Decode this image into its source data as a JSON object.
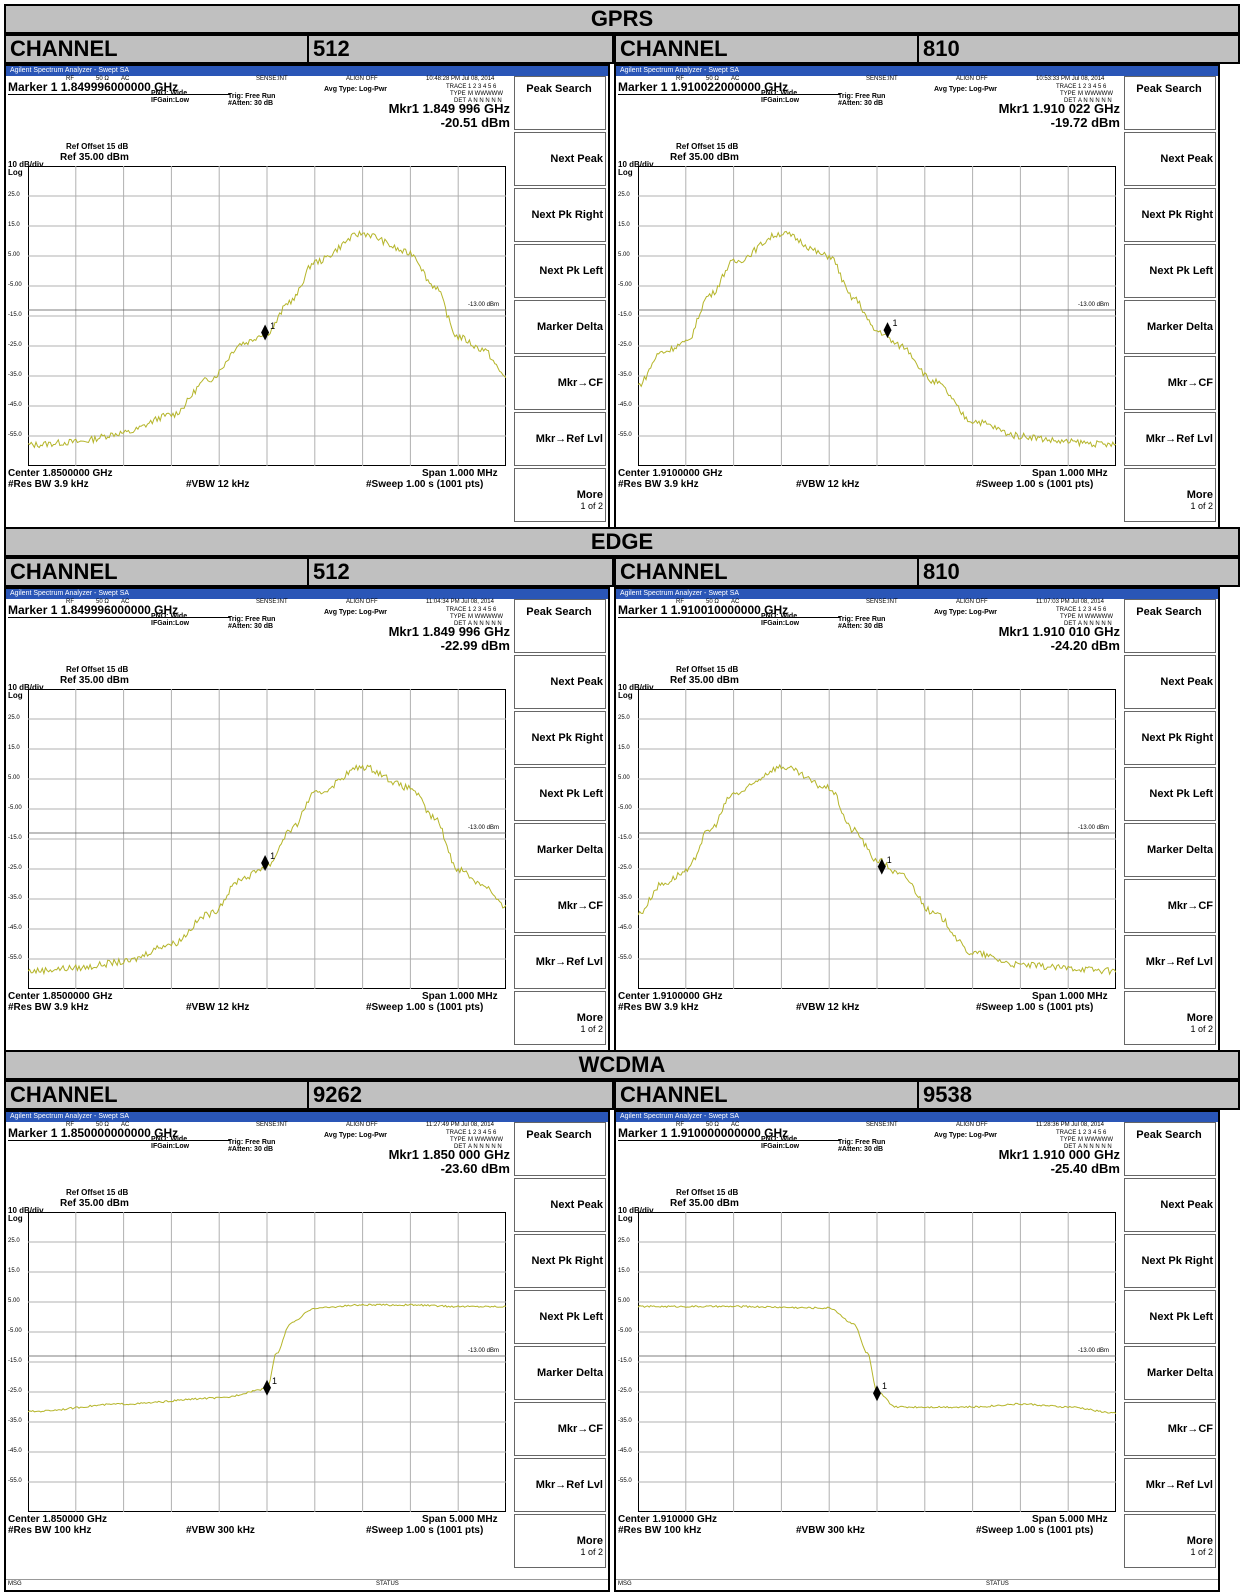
{
  "labels": {
    "channel_word": "CHANNEL",
    "app_title": "Agilent Spectrum Analyzer - Swept SA",
    "status_rf": "RF",
    "status_ohm": "50 Ω",
    "status_ac": "AC",
    "status_sense": "SENSE:INT",
    "status_align": "ALIGN OFF",
    "avg_type": "Avg Type: Log-Pwr",
    "pno": "PNO: Wide",
    "ifgain": "IFGain:Low",
    "trig": "Trig: Free Run",
    "atten": "#Atten: 30 dB",
    "trace_row": "TRACE",
    "trace_digits": "1 2 3 4 5 6",
    "type_row": "TYPE",
    "type_val": "M WWWWW",
    "det_row": "DET",
    "det_val": "A N N N N N",
    "ref_offset": "Ref Offset 15 dB",
    "div_label": "10 dB/div",
    "ref_level": "Ref 35.00 dBm",
    "log_label": "Log",
    "limit_label": "-13.00 dBm",
    "msg": "MSG",
    "status": "STATUS",
    "marker_num": "1",
    "softkeys": [
      "Peak Search",
      "Next Peak",
      "Next Pk Right",
      "Next Pk Left",
      "Marker Delta",
      "Mkr→CF",
      "Mkr→Ref Lvl",
      "More"
    ],
    "more_sub": "1 of 2",
    "y_ticks": [
      "25.0",
      "15.0",
      "5.00",
      "-5.00",
      "-15.0",
      "-25.0",
      "-35.0",
      "-45.0",
      "-55.0"
    ]
  },
  "sections": [
    {
      "title": "GPRS",
      "channels": [
        "512",
        "810"
      ]
    },
    {
      "title": "EDGE",
      "channels": [
        "512",
        "810"
      ]
    },
    {
      "title": "WCDMA",
      "channels": [
        "9262",
        "9538"
      ]
    }
  ],
  "screens": [
    {
      "timestamp": "10:48:28 PM Jul 08, 2014",
      "marker_label": "Marker 1 1.849996000000 GHz",
      "mkr_freq": "Mkr1 1.849 996 GHz",
      "mkr_amp": "-20.51 dBm",
      "center": "Center 1.8500000 GHz",
      "span": "Span 1.000 MHz",
      "res_bw": "#Res BW 3.9 kHz",
      "vbw": "#VBW 12 kHz",
      "sweep": "#Sweep  1.00 s (1001 pts)"
    },
    {
      "timestamp": "10:53:33 PM Jul 08, 2014",
      "marker_label": "Marker 1 1.910022000000 GHz",
      "mkr_freq": "Mkr1 1.910 022 GHz",
      "mkr_amp": "-19.72 dBm",
      "center": "Center 1.9100000 GHz",
      "span": "Span 1.000 MHz",
      "res_bw": "#Res BW 3.9 kHz",
      "vbw": "#VBW 12 kHz",
      "sweep": "#Sweep  1.00 s (1001 pts)"
    },
    {
      "timestamp": "11:04:34 PM Jul 08, 2014",
      "marker_label": "Marker 1 1.849996000000 GHz",
      "mkr_freq": "Mkr1 1.849 996 GHz",
      "mkr_amp": "-22.99 dBm",
      "center": "Center 1.8500000 GHz",
      "span": "Span 1.000 MHz",
      "res_bw": "#Res BW 3.9 kHz",
      "vbw": "#VBW 12 kHz",
      "sweep": "#Sweep  1.00 s (1001 pts)"
    },
    {
      "timestamp": "11:07:03 PM Jul 08, 2014",
      "marker_label": "Marker 1 1.910010000000 GHz",
      "mkr_freq": "Mkr1 1.910 010 GHz",
      "mkr_amp": "-24.20 dBm",
      "center": "Center 1.9100000 GHz",
      "span": "Span 1.000 MHz",
      "res_bw": "#Res BW 3.9 kHz",
      "vbw": "#VBW 12 kHz",
      "sweep": "#Sweep  1.00 s (1001 pts)"
    },
    {
      "timestamp": "11:27:49 PM Jul 08, 2014",
      "marker_label": "Marker 1 1.850000000000 GHz",
      "mkr_freq": "Mkr1 1.850 000 GHz",
      "mkr_amp": "-23.60 dBm",
      "center": "Center 1.850000 GHz",
      "span": "Span 5.000 MHz",
      "res_bw": "#Res BW 100 kHz",
      "vbw": "#VBW 300 kHz",
      "sweep": "#Sweep  1.00 s (1001 pts)"
    },
    {
      "timestamp": "11:28:36 PM Jul 08, 2014",
      "marker_label": "Marker 1 1.910000000000 GHz",
      "mkr_freq": "Mkr1 1.910 000 GHz",
      "mkr_amp": "-25.40 dBm",
      "center": "Center 1.910000 GHz",
      "span": "Span 5.000 MHz",
      "res_bw": "#Res BW 100 kHz",
      "vbw": "#VBW 300 kHz",
      "sweep": "#Sweep  1.00 s (1001 pts)"
    }
  ],
  "colors": {
    "trace": "#b5b52a",
    "titlebar": "#2a56b7",
    "grid": "#b0b0b0"
  },
  "chart_data": [
    {
      "type": "line",
      "title": "",
      "ylim": [
        -65,
        35
      ],
      "xlim_offset_mhz": [
        -0.5,
        0.5
      ],
      "limit_line_dbm": -13.0,
      "series": [
        {
          "x": [
            -0.5,
            -0.4,
            -0.3,
            -0.2,
            -0.12,
            -0.05,
            0,
            0.05,
            0.1,
            0.2,
            0.3,
            0.35,
            0.4,
            0.45,
            0.5
          ],
          "values": [
            -58,
            -57,
            -54,
            -48,
            -36,
            -24,
            -20.5,
            -10,
            3,
            12.5,
            6,
            -5,
            -22,
            -26,
            -35
          ]
        }
      ],
      "marker": {
        "x": -0.004,
        "y": -20.51
      }
    },
    {
      "type": "line",
      "title": "",
      "ylim": [
        -65,
        35
      ],
      "xlim_offset_mhz": [
        -0.5,
        0.5
      ],
      "limit_line_dbm": -13.0,
      "series": [
        {
          "x": [
            -0.5,
            -0.45,
            -0.4,
            -0.35,
            -0.3,
            -0.2,
            -0.1,
            -0.05,
            0,
            0.05,
            0.12,
            0.2,
            0.3,
            0.4,
            0.5
          ],
          "values": [
            -38,
            -27,
            -24,
            -8,
            3,
            12.5,
            5,
            -9,
            -20,
            -25,
            -37,
            -50,
            -55,
            -57,
            -58
          ]
        }
      ],
      "marker": {
        "x": 0.022,
        "y": -19.72
      }
    },
    {
      "type": "line",
      "title": "",
      "ylim": [
        -65,
        35
      ],
      "xlim_offset_mhz": [
        -0.5,
        0.5
      ],
      "limit_line_dbm": -13.0,
      "series": [
        {
          "x": [
            -0.5,
            -0.4,
            -0.3,
            -0.2,
            -0.12,
            -0.05,
            0,
            0.05,
            0.1,
            0.2,
            0.3,
            0.35,
            0.4,
            0.45,
            0.5
          ],
          "values": [
            -59,
            -58,
            -56,
            -50,
            -40,
            -28,
            -24,
            -12,
            0,
            9,
            2,
            -8,
            -25,
            -30,
            -38
          ]
        }
      ],
      "marker": {
        "x": -0.004,
        "y": -22.99
      }
    },
    {
      "type": "line",
      "title": "",
      "ylim": [
        -65,
        35
      ],
      "xlim_offset_mhz": [
        -0.5,
        0.5
      ],
      "limit_line_dbm": -13.0,
      "series": [
        {
          "x": [
            -0.5,
            -0.45,
            -0.4,
            -0.35,
            -0.3,
            -0.2,
            -0.1,
            -0.05,
            0,
            0.05,
            0.12,
            0.2,
            0.3,
            0.4,
            0.5
          ],
          "values": [
            -40,
            -30,
            -26,
            -12,
            0,
            9,
            2,
            -12,
            -22,
            -27,
            -40,
            -53,
            -57,
            -58,
            -59
          ]
        }
      ],
      "marker": {
        "x": 0.01,
        "y": -24.2
      }
    },
    {
      "type": "line",
      "title": "",
      "ylim": [
        -65,
        35
      ],
      "xlim_offset_mhz": [
        -2.5,
        2.5
      ],
      "limit_line_dbm": -13.0,
      "series": [
        {
          "x": [
            -2.5,
            -1.5,
            -0.5,
            0,
            0.1,
            0.25,
            0.5,
            1.0,
            1.5,
            2.0,
            2.5
          ],
          "values": [
            -31.5,
            -29,
            -27,
            -24,
            -12,
            -2,
            3,
            4,
            4,
            3.5,
            3.5
          ]
        }
      ],
      "marker": {
        "x": 0.0,
        "y": -23.6
      }
    },
    {
      "type": "line",
      "title": "",
      "ylim": [
        -65,
        35
      ],
      "xlim_offset_mhz": [
        -2.5,
        2.5
      ],
      "limit_line_dbm": -13.0,
      "series": [
        {
          "x": [
            -2.5,
            -1.5,
            -0.5,
            -0.25,
            -0.1,
            0,
            0.2,
            1.0,
            1.5,
            2.0,
            2.5
          ],
          "values": [
            3.5,
            3.5,
            3,
            -2,
            -12,
            -25,
            -30,
            -30,
            -29,
            -30,
            -32
          ]
        }
      ],
      "marker": {
        "x": 0.0,
        "y": -25.4
      }
    }
  ]
}
